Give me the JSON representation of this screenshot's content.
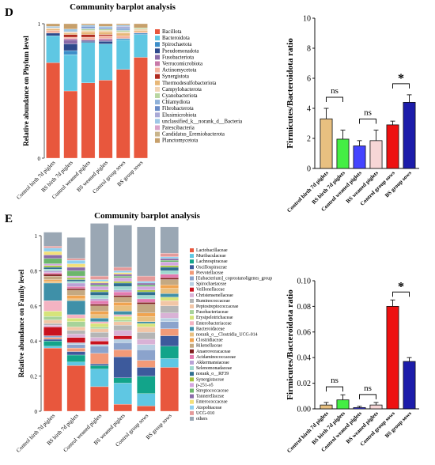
{
  "panel_labels": [
    "D",
    "E"
  ],
  "chart_data": [
    {
      "id": "phylum",
      "type": "bar",
      "stacked": true,
      "title": "Community barplot analysis",
      "ylabel": "Relative abundance on Phylum level",
      "ylim": [
        0,
        1
      ],
      "categories": [
        "Control birth 7d piglets",
        "BS birth 7d piglets",
        "Control weaned piglets",
        "BS weaned piglets",
        "Control group sows",
        "BS group sows"
      ],
      "legend_position": "right",
      "series": [
        {
          "name": "Bacillota",
          "color": "#e8573d",
          "values": [
            0.71,
            0.5,
            0.56,
            0.58,
            0.66,
            0.75
          ]
        },
        {
          "name": "Bacteroidota",
          "color": "#5fc7e3",
          "values": [
            0.2,
            0.27,
            0.3,
            0.27,
            0.22,
            0.17
          ]
        },
        {
          "name": "Spirochaetota",
          "color": "#3d8ec9",
          "values": [
            0.0,
            0.03,
            0.0,
            0.0,
            0.01,
            0.01
          ]
        },
        {
          "name": "Pseudomonadota",
          "color": "#2e4a8c",
          "values": [
            0.02,
            0.05,
            0.01,
            0.02,
            0.0,
            0.0
          ]
        },
        {
          "name": "Fusobacteriota",
          "color": "#8a6ba8",
          "values": [
            0.0,
            0.03,
            0.01,
            0.01,
            0.0,
            0.0
          ]
        },
        {
          "name": "Verrucomicrobiota",
          "color": "#c879a8",
          "values": [
            0.0,
            0.01,
            0.0,
            0.01,
            0.0,
            0.0
          ]
        },
        {
          "name": "Actinomycetota",
          "color": "#f4b3a0",
          "values": [
            0.02,
            0.01,
            0.02,
            0.02,
            0.02,
            0.01
          ]
        },
        {
          "name": "Synergistota",
          "color": "#b02a1e",
          "values": [
            0.0,
            0.02,
            0.02,
            0.01,
            0.0,
            0.0
          ]
        },
        {
          "name": "Thermodesulfobacteriota",
          "color": "#e8b878",
          "values": [
            0.01,
            0.01,
            0.02,
            0.02,
            0.02,
            0.01
          ]
        },
        {
          "name": "Campylobacterota",
          "color": "#f2d4b4",
          "values": [
            0.01,
            0.01,
            0.01,
            0.01,
            0.01,
            0.01
          ]
        },
        {
          "name": "Cyanobacteriota",
          "color": "#b9d6a1",
          "values": [
            0.0,
            0.0,
            0.01,
            0.01,
            0.01,
            0.01
          ]
        },
        {
          "name": "Chlamydiota",
          "color": "#8fb1d9",
          "values": [
            0.0,
            0.0,
            0.01,
            0.0,
            0.01,
            0.0
          ]
        },
        {
          "name": "Fibrobacterota",
          "color": "#6a8cc7",
          "values": [
            0.0,
            0.0,
            0.01,
            0.01,
            0.01,
            0.0
          ]
        },
        {
          "name": "Elusimicrobiota",
          "color": "#a9a9d6",
          "values": [
            0.0,
            0.0,
            0.0,
            0.0,
            0.01,
            0.0
          ]
        },
        {
          "name": "unclassified_k__norank_d__Bacteria",
          "color": "#9ec7e6",
          "values": [
            0.01,
            0.02,
            0.01,
            0.01,
            0.01,
            0.0
          ]
        },
        {
          "name": "Patescibacteria",
          "color": "#d9a3c9",
          "values": [
            0.0,
            0.0,
            0.0,
            0.0,
            0.0,
            0.0
          ]
        },
        {
          "name": "Candidatus_Eremiobacterota",
          "color": "#c9b48a",
          "values": [
            0.0,
            0.0,
            0.0,
            0.0,
            0.0,
            0.0
          ]
        },
        {
          "name": "Planctomycetota",
          "color": "#c7a06b",
          "values": [
            0.02,
            0.04,
            0.01,
            0.02,
            0.01,
            0.03
          ]
        }
      ]
    },
    {
      "id": "ratio_d",
      "type": "bar",
      "ylabel": "Firmicutes/Bacteroidota ratio",
      "ylim": [
        0,
        10
      ],
      "yticks": [
        0,
        2,
        4,
        6,
        8,
        10
      ],
      "categories": [
        "Control birth 7d piglets",
        "BS birth 7d piglets",
        "Control weaned piglets",
        "BS weaned piglets",
        "Control group sows",
        "BS group sows"
      ],
      "values": [
        3.3,
        1.95,
        1.5,
        1.85,
        2.9,
        4.4
      ],
      "errors": [
        0.7,
        0.6,
        0.35,
        0.7,
        0.25,
        0.5
      ],
      "colors": [
        "#e8c080",
        "#44ee44",
        "#4444ff",
        "#f7d6d6",
        "#ee1111",
        "#1c1caa"
      ],
      "annotations": [
        {
          "pair": [
            0,
            1
          ],
          "label": "ns"
        },
        {
          "pair": [
            2,
            3
          ],
          "label": "ns"
        },
        {
          "pair": [
            4,
            5
          ],
          "label": "*"
        }
      ]
    },
    {
      "id": "family",
      "type": "bar",
      "stacked": true,
      "title": "Community barplot analysis",
      "ylabel": "Relative abundance on Family level",
      "ylim": [
        0,
        1
      ],
      "yticks": [
        0,
        0.2,
        0.4,
        0.6,
        0.8,
        1
      ],
      "categories": [
        "Control birth 7d piglets",
        "BS birth 7d piglets",
        "Control weaned piglets",
        "BS weaned piglets",
        "Control group sows",
        "BS group sows"
      ],
      "legend_position": "right",
      "series": [
        {
          "name": "Lactobacillaceae",
          "color": "#e8573d",
          "values": [
            0.36,
            0.26,
            0.14,
            0.04,
            0.03,
            0.25
          ]
        },
        {
          "name": "Muribaculaceae",
          "color": "#5fc7e3",
          "values": [
            0.01,
            0.02,
            0.1,
            0.12,
            0.07,
            0.05
          ]
        },
        {
          "name": "Lachnospiraceae",
          "color": "#12a48a",
          "values": [
            0.03,
            0.04,
            0.02,
            0.03,
            0.1,
            0.07
          ]
        },
        {
          "name": "Oscillospiraceae",
          "color": "#3d5a9c",
          "values": [
            0.01,
            0.02,
            0.01,
            0.12,
            0.05,
            0.06
          ]
        },
        {
          "name": "Prevotellaceae",
          "color": "#f29a78",
          "values": [
            0.01,
            0.02,
            0.06,
            0.04,
            0.04,
            0.04
          ]
        },
        {
          "name": "[Eubacterium]_coprostanoligenes_group",
          "color": "#8ba3cc",
          "values": [
            0.01,
            0.02,
            0.04,
            0.04,
            0.06,
            0.04
          ]
        },
        {
          "name": "Spirochaetaceae",
          "color": "#b7cfe2",
          "values": [
            0.0,
            0.01,
            0.01,
            0.02,
            0.03,
            0.02
          ]
        },
        {
          "name": "Veillonellaceae",
          "color": "#c9121e",
          "values": [
            0.05,
            0.03,
            0.02,
            0.02,
            0.0,
            0.0
          ]
        },
        {
          "name": "Christensenellaceae",
          "color": "#d9b2d6",
          "values": [
            0.01,
            0.02,
            0.02,
            0.03,
            0.03,
            0.03
          ]
        },
        {
          "name": "Ruminococcaceae",
          "color": "#b5b5b5",
          "values": [
            0.01,
            0.02,
            0.03,
            0.03,
            0.04,
            0.04
          ]
        },
        {
          "name": "Peptostreptococcaceae",
          "color": "#f2c6a6",
          "values": [
            0.02,
            0.02,
            0.02,
            0.02,
            0.03,
            0.03
          ]
        },
        {
          "name": "Fusobacteriaceae",
          "color": "#a7d39a",
          "values": [
            0.02,
            0.03,
            0.01,
            0.01,
            0.0,
            0.0
          ]
        },
        {
          "name": "Erysipelotrichaceae",
          "color": "#d6e47a",
          "values": [
            0.03,
            0.02,
            0.02,
            0.02,
            0.02,
            0.02
          ]
        },
        {
          "name": "Enterobacteriaceae",
          "color": "#f4b3c2",
          "values": [
            0.06,
            0.02,
            0.01,
            0.01,
            0.0,
            0.0
          ]
        },
        {
          "name": "Bacteroidaceae",
          "color": "#3f90a8",
          "values": [
            0.1,
            0.08,
            0.02,
            0.02,
            0.01,
            0.02
          ]
        },
        {
          "name": "norank_o__Clostridia_UCG-014",
          "color": "#e8c080",
          "values": [
            0.01,
            0.01,
            0.02,
            0.03,
            0.03,
            0.03
          ]
        },
        {
          "name": "Clostridiaceae",
          "color": "#f0a450",
          "values": [
            0.01,
            0.02,
            0.02,
            0.02,
            0.02,
            0.02
          ]
        },
        {
          "name": "Rikenellaceae",
          "color": "#c4a982",
          "values": [
            0.02,
            0.03,
            0.03,
            0.03,
            0.05,
            0.03
          ]
        },
        {
          "name": "Anaerovoracaceae",
          "color": "#7f1d1d",
          "values": [
            0.01,
            0.01,
            0.01,
            0.01,
            0.01,
            0.01
          ]
        },
        {
          "name": "Acidaminococcaceae",
          "color": "#e37bb0",
          "values": [
            0.01,
            0.01,
            0.02,
            0.02,
            0.02,
            0.02
          ]
        },
        {
          "name": "Akkermansiaceae",
          "color": "#b9a2d6",
          "values": [
            0.01,
            0.02,
            0.01,
            0.01,
            0.0,
            0.0
          ]
        },
        {
          "name": "Selenomonadaceae",
          "color": "#9ed9cf",
          "values": [
            0.01,
            0.01,
            0.02,
            0.02,
            0.02,
            0.02
          ]
        },
        {
          "name": "norank_o__RF39",
          "color": "#2f6f8f",
          "values": [
            0.01,
            0.01,
            0.02,
            0.02,
            0.02,
            0.02
          ]
        },
        {
          "name": "Synergistaceae",
          "color": "#a3c23a",
          "values": [
            0.01,
            0.01,
            0.01,
            0.01,
            0.01,
            0.01
          ]
        },
        {
          "name": "p-251-o5",
          "color": "#d4a6e0",
          "values": [
            0.01,
            0.01,
            0.02,
            0.02,
            0.02,
            0.02
          ]
        },
        {
          "name": "Streptococcaceae",
          "color": "#6cb66c",
          "values": [
            0.03,
            0.03,
            0.01,
            0.01,
            0.01,
            0.01
          ]
        },
        {
          "name": "Tannerellaceae",
          "color": "#8a6ba8",
          "values": [
            0.02,
            0.02,
            0.01,
            0.01,
            0.01,
            0.01
          ]
        },
        {
          "name": "Enterococcaceae",
          "color": "#f3e07a",
          "values": [
            0.02,
            0.02,
            0.01,
            0.01,
            0.0,
            0.0
          ]
        },
        {
          "name": "Atopobiaceae",
          "color": "#8fd0f0",
          "values": [
            0.02,
            0.02,
            0.01,
            0.01,
            0.01,
            0.01
          ]
        },
        {
          "name": "UCG-010",
          "color": "#e59a9a",
          "values": [
            0.01,
            0.01,
            0.02,
            0.02,
            0.03,
            0.02
          ]
        },
        {
          "name": "others",
          "color": "#9aa7b4",
          "values": [
            0.08,
            0.12,
            0.3,
            0.24,
            0.28,
            0.15
          ]
        }
      ]
    },
    {
      "id": "ratio_e",
      "type": "bar",
      "ylabel": "Firmicutes/Bacteroidota ratio",
      "ylim": [
        0,
        0.1
      ],
      "yticks": [
        0.0,
        0.02,
        0.04,
        0.06,
        0.08,
        0.1
      ],
      "categories": [
        "Control birth 7d piglets",
        "BS birth 7d piglets",
        "Control weaned piglets",
        "BS weaned piglets",
        "Control group sows",
        "BS group sows"
      ],
      "values": [
        0.003,
        0.007,
        0.001,
        0.003,
        0.08,
        0.037
      ],
      "errors": [
        0.002,
        0.004,
        0.001,
        0.002,
        0.005,
        0.003
      ],
      "colors": [
        "#e8c080",
        "#44ee44",
        "#4444ff",
        "#f7d6d6",
        "#ee1111",
        "#1c1caa"
      ],
      "annotations": [
        {
          "pair": [
            0,
            1
          ],
          "label": "ns"
        },
        {
          "pair": [
            2,
            3
          ],
          "label": "ns"
        },
        {
          "pair": [
            4,
            5
          ],
          "label": "*"
        }
      ]
    }
  ]
}
